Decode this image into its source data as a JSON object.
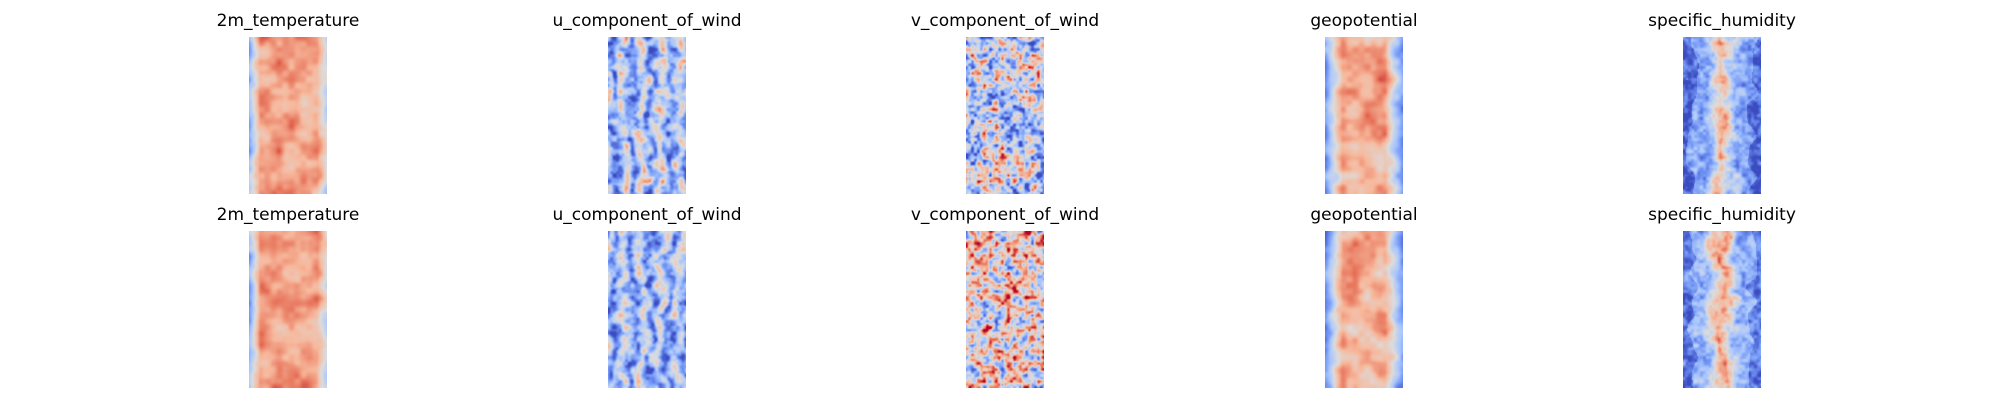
{
  "figure": {
    "colormap": "coolwarm",
    "colormap_stops": [
      "#3b4cc0",
      "#6f92f3",
      "#aac7fd",
      "#dddcdc",
      "#f7b89c",
      "#e7745b",
      "#b40426"
    ]
  },
  "chart_data": [
    {
      "type": "heatmap",
      "title": "2m_temperature",
      "row": 1,
      "col": 1,
      "colormap": "coolwarm",
      "pattern": "cold left edge, warm body",
      "mean_level": 0.72,
      "contrast": 0.25
    },
    {
      "type": "heatmap",
      "title": "u_component_of_wind",
      "row": 1,
      "col": 2,
      "colormap": "coolwarm",
      "pattern": "vertical streaks, mostly cool",
      "mean_level": 0.35,
      "contrast": 0.45
    },
    {
      "type": "heatmap",
      "title": "v_component_of_wind",
      "row": 1,
      "col": 3,
      "colormap": "coolwarm",
      "pattern": "speckled, mixed",
      "mean_level": 0.42,
      "contrast": 0.55
    },
    {
      "type": "heatmap",
      "title": "geopotential",
      "row": 1,
      "col": 4,
      "colormap": "coolwarm",
      "pattern": "cool edges, warm center",
      "mean_level": 0.7,
      "contrast": 0.3
    },
    {
      "type": "heatmap",
      "title": "specific_humidity",
      "row": 1,
      "col": 5,
      "colormap": "coolwarm",
      "pattern": "dark blue edges, warm center ridge",
      "mean_level": 0.35,
      "contrast": 0.4
    },
    {
      "type": "heatmap",
      "title": "2m_temperature",
      "row": 2,
      "col": 1,
      "colormap": "coolwarm",
      "pattern": "cold left edge, warm body",
      "mean_level": 0.72,
      "contrast": 0.25
    },
    {
      "type": "heatmap",
      "title": "u_component_of_wind",
      "row": 2,
      "col": 2,
      "colormap": "coolwarm",
      "pattern": "vertical streaks, mostly cool",
      "mean_level": 0.3,
      "contrast": 0.35
    },
    {
      "type": "heatmap",
      "title": "v_component_of_wind",
      "row": 2,
      "col": 3,
      "colormap": "coolwarm",
      "pattern": "speckled, warmer",
      "mean_level": 0.55,
      "contrast": 0.55
    },
    {
      "type": "heatmap",
      "title": "geopotential",
      "row": 2,
      "col": 4,
      "colormap": "coolwarm",
      "pattern": "cool edges, warm center",
      "mean_level": 0.68,
      "contrast": 0.3
    },
    {
      "type": "heatmap",
      "title": "specific_humidity",
      "row": 2,
      "col": 5,
      "colormap": "coolwarm",
      "pattern": "blue edges, warm center ridge",
      "mean_level": 0.4,
      "contrast": 0.4
    }
  ]
}
